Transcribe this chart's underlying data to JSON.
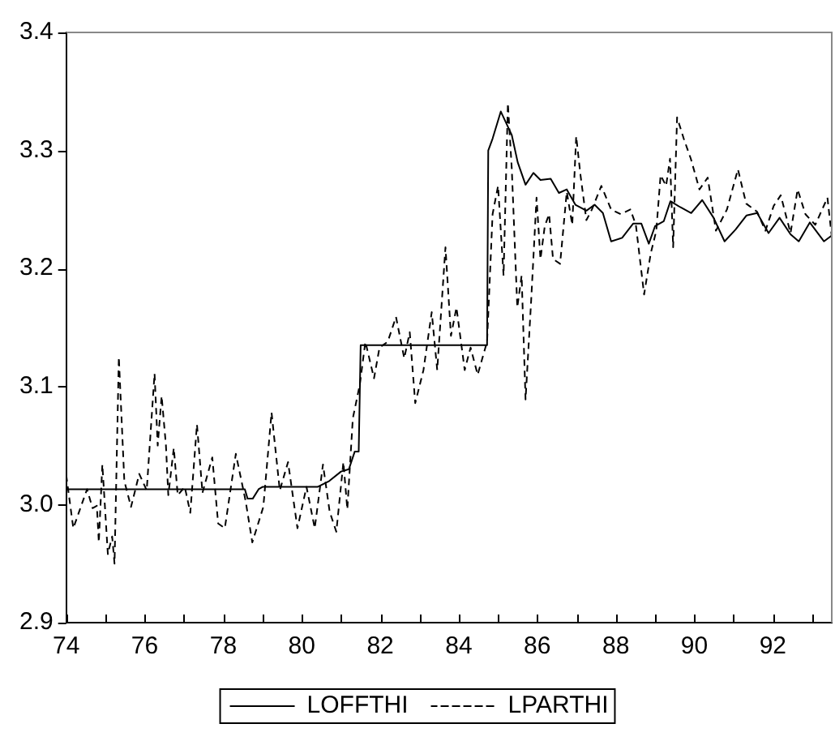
{
  "chart_data": {
    "type": "line",
    "xlim": [
      74,
      93.5
    ],
    "ylim": [
      2.9,
      3.4
    ],
    "xticks": [
      74,
      {
        "value": 75,
        "label": null
      },
      76,
      {
        "value": 77,
        "label": null
      },
      78,
      {
        "value": 79,
        "label": null
      },
      80,
      {
        "value": 81,
        "label": null
      },
      82,
      {
        "value": 83,
        "label": null
      },
      84,
      {
        "value": 85,
        "label": null
      },
      86,
      {
        "value": 87,
        "label": null
      },
      88,
      {
        "value": 89,
        "label": null
      },
      90,
      {
        "value": 91,
        "label": null
      },
      92,
      {
        "value": 93,
        "label": null
      }
    ],
    "yticks": [
      2.9,
      {
        "value": 3.0,
        "label": "3.0"
      },
      3.1,
      3.2,
      3.3,
      3.4
    ],
    "grid": false,
    "legend": "bottom",
    "marker": "none",
    "series": [
      {
        "name": "LOFFTHI",
        "color": "#000000",
        "line_style": "solid",
        "x": [
          74,
          78.55,
          78.62,
          78.75,
          78.9,
          79.0,
          80.4,
          80.7,
          81.0,
          81.2,
          81.35,
          81.45,
          81.5,
          84.72,
          84.75,
          84.86,
          85.07,
          85.35,
          85.5,
          85.7,
          85.9,
          86.08,
          86.34,
          86.55,
          86.75,
          86.97,
          87.25,
          87.46,
          87.67,
          87.88,
          88.16,
          88.44,
          88.65,
          88.84,
          89.0,
          89.22,
          89.39,
          89.64,
          89.92,
          90.2,
          90.49,
          90.77,
          91.05,
          91.33,
          91.6,
          91.89,
          92.17,
          92.45,
          92.66,
          92.94,
          93.3,
          93.5
        ],
        "values": [
          3.013,
          3.013,
          3.005,
          3.005,
          3.013,
          3.015,
          3.015,
          3.02,
          3.028,
          3.03,
          3.045,
          3.045,
          3.135,
          3.135,
          3.3,
          3.31,
          3.333,
          3.313,
          3.29,
          3.271,
          3.281,
          3.275,
          3.276,
          3.264,
          3.267,
          3.254,
          3.249,
          3.254,
          3.247,
          3.223,
          3.226,
          3.238,
          3.238,
          3.221,
          3.236,
          3.24,
          3.257,
          3.252,
          3.247,
          3.258,
          3.243,
          3.223,
          3.233,
          3.245,
          3.247,
          3.23,
          3.243,
          3.229,
          3.223,
          3.239,
          3.223,
          3.228
        ]
      },
      {
        "name": "LPARTHI",
        "color": "#000000",
        "line_style": "dashed",
        "x": [
          74.0,
          74.18,
          74.53,
          74.67,
          74.78,
          74.83,
          74.92,
          75.06,
          75.17,
          75.23,
          75.34,
          75.48,
          75.65,
          75.86,
          76.05,
          76.25,
          76.33,
          76.43,
          76.54,
          76.6,
          76.74,
          76.84,
          77.02,
          77.16,
          77.33,
          77.47,
          77.72,
          77.87,
          78.04,
          78.32,
          78.57,
          78.74,
          79.02,
          79.23,
          79.44,
          79.65,
          79.89,
          80.12,
          80.33,
          80.54,
          80.71,
          80.88,
          81.06,
          81.16,
          81.3,
          81.48,
          81.62,
          81.84,
          81.98,
          82.19,
          82.4,
          82.61,
          82.75,
          82.89,
          83.1,
          83.31,
          83.45,
          83.66,
          83.8,
          83.94,
          84.15,
          84.3,
          84.48,
          84.72,
          84.86,
          85.0,
          85.14,
          85.25,
          85.35,
          85.49,
          85.6,
          85.7,
          85.84,
          85.98,
          86.08,
          86.19,
          86.3,
          86.4,
          86.58,
          86.75,
          86.89,
          86.99,
          87.1,
          87.25,
          87.39,
          87.63,
          87.88,
          88.13,
          88.37,
          88.51,
          88.72,
          88.89,
          89.03,
          89.14,
          89.28,
          89.38,
          89.46,
          89.56,
          89.73,
          89.91,
          90.13,
          90.34,
          90.55,
          90.83,
          91.11,
          91.32,
          91.6,
          91.81,
          92.02,
          92.2,
          92.45,
          92.63,
          92.83,
          93.08,
          93.39,
          93.5
        ],
        "values": [
          3.025,
          2.98,
          3.013,
          2.997,
          2.999,
          2.968,
          3.034,
          2.958,
          2.973,
          2.95,
          3.125,
          3.02,
          2.998,
          3.026,
          3.012,
          3.111,
          3.05,
          3.092,
          3.05,
          3.008,
          3.048,
          3.008,
          3.015,
          2.993,
          3.068,
          3.01,
          3.04,
          2.984,
          2.98,
          3.043,
          3.003,
          2.968,
          2.998,
          3.078,
          3.012,
          3.036,
          2.98,
          3.015,
          2.98,
          3.034,
          2.994,
          2.977,
          3.036,
          2.996,
          3.073,
          3.102,
          3.138,
          3.107,
          3.133,
          3.138,
          3.159,
          3.124,
          3.146,
          3.086,
          3.114,
          3.163,
          3.114,
          3.218,
          3.143,
          3.167,
          3.114,
          3.133,
          3.11,
          3.138,
          3.246,
          3.27,
          3.194,
          3.34,
          3.284,
          3.167,
          3.194,
          3.089,
          3.171,
          3.26,
          3.208,
          3.236,
          3.246,
          3.208,
          3.204,
          3.265,
          3.237,
          3.312,
          3.279,
          3.241,
          3.25,
          3.27,
          3.25,
          3.246,
          3.25,
          3.237,
          3.178,
          3.213,
          3.232,
          3.279,
          3.27,
          3.293,
          3.218,
          3.328,
          3.31,
          3.293,
          3.267,
          3.277,
          3.232,
          3.25,
          3.284,
          3.255,
          3.248,
          3.232,
          3.253,
          3.262,
          3.23,
          3.267,
          3.246,
          3.237,
          3.26,
          3.227
        ]
      }
    ]
  }
}
